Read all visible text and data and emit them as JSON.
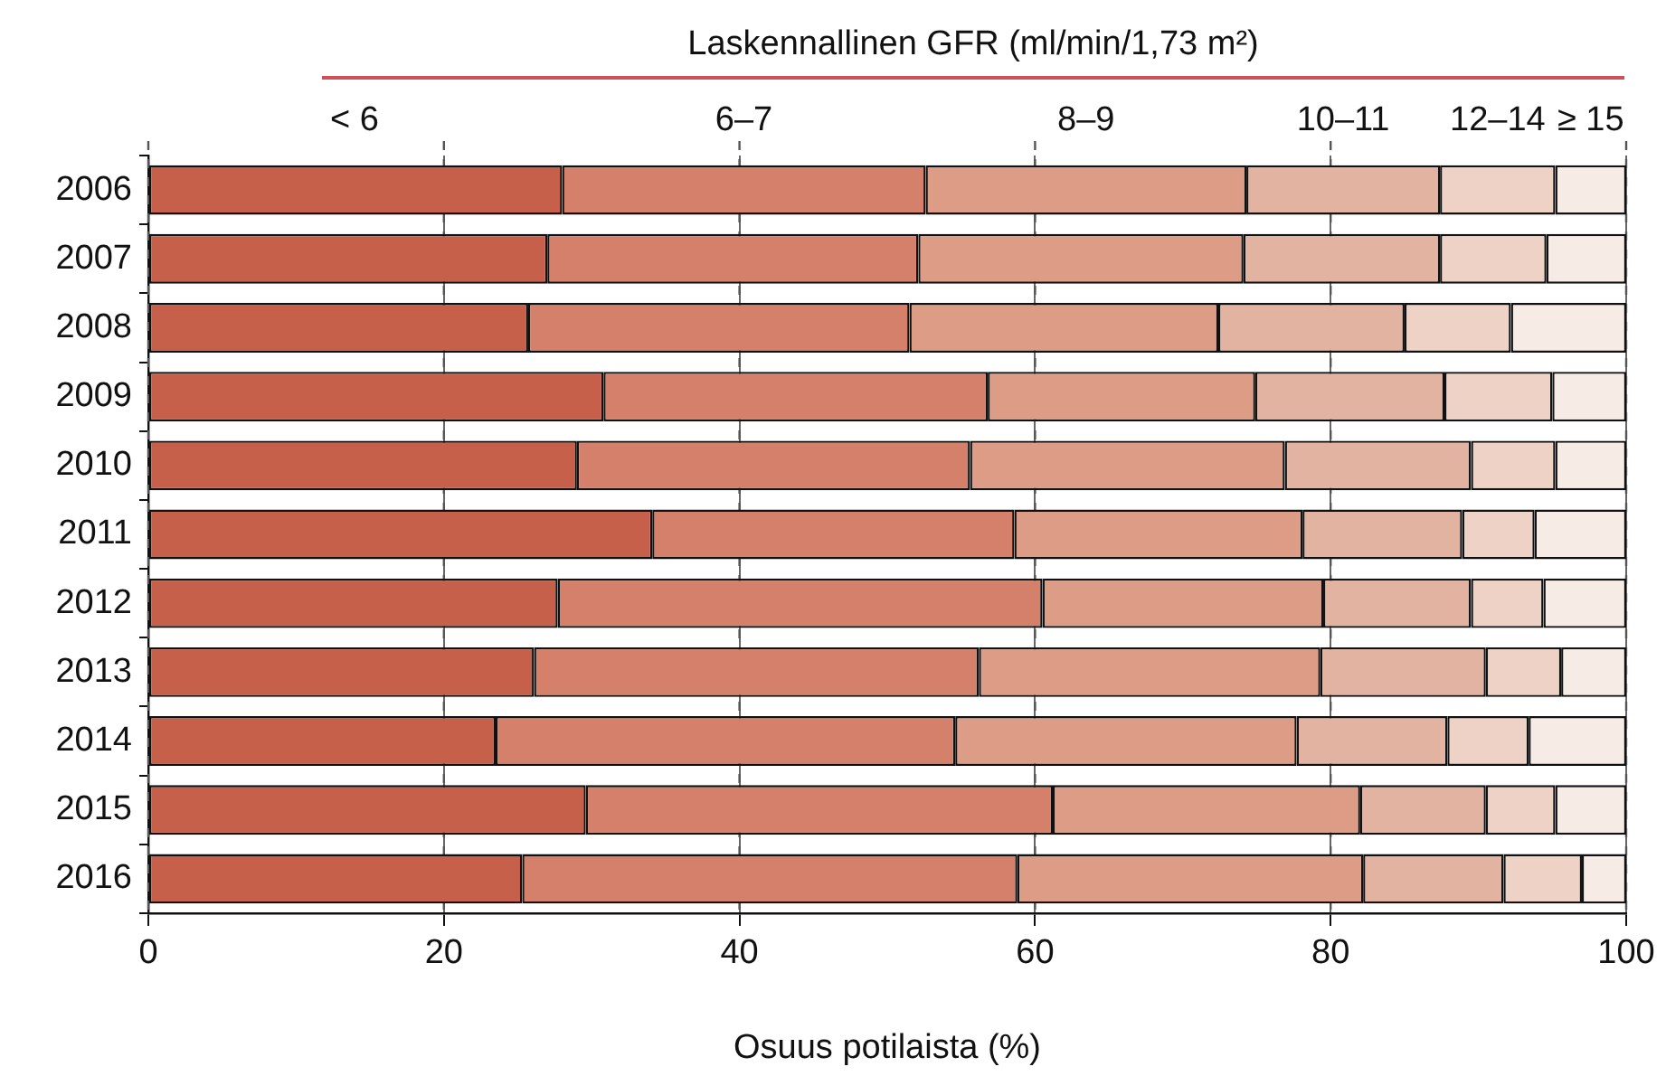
{
  "chart_data": {
    "type": "bar",
    "orientation": "horizontal",
    "stacked": true,
    "legend_title": "Laskennallinen GFR (ml/min/1,73 m²)",
    "xlabel": "Osuus potilaista (%)",
    "categories": [
      "2006",
      "2007",
      "2008",
      "2009",
      "2010",
      "2011",
      "2012",
      "2013",
      "2014",
      "2015",
      "2016"
    ],
    "series": [
      {
        "name": "< 6",
        "color": "#c6604a",
        "values": [
          28.0,
          27.0,
          25.7,
          30.8,
          29.0,
          34.1,
          27.7,
          26.1,
          23.5,
          29.6,
          25.3
        ]
      },
      {
        "name": "6–7",
        "color": "#d4806a",
        "values": [
          24.6,
          25.1,
          25.8,
          26.0,
          26.6,
          24.5,
          32.8,
          30.1,
          31.1,
          31.6,
          33.5
        ]
      },
      {
        "name": "8–9",
        "color": "#dc9c86",
        "values": [
          21.7,
          22.0,
          20.9,
          18.1,
          21.3,
          19.5,
          19.0,
          23.1,
          23.1,
          20.8,
          23.4
        ]
      },
      {
        "name": "10–11",
        "color": "#e3b3a2",
        "values": [
          13.1,
          13.3,
          12.6,
          12.8,
          12.6,
          10.8,
          10.0,
          11.2,
          10.2,
          8.5,
          9.5
        ]
      },
      {
        "name": "12–14",
        "color": "#efd2c6",
        "values": [
          7.8,
          7.2,
          7.2,
          7.3,
          5.7,
          4.9,
          4.9,
          5.1,
          5.5,
          4.7,
          5.3
        ]
      },
      {
        "name": "≥ 15",
        "color": "#f7ebe6",
        "values": [
          4.8,
          5.4,
          7.8,
          5.0,
          4.8,
          6.2,
          5.6,
          4.4,
          6.6,
          4.8,
          3.0
        ]
      }
    ],
    "xlim": [
      0,
      100
    ],
    "xticks": [
      0,
      20,
      40,
      60,
      80,
      100
    ],
    "grid": "x",
    "legend": "top"
  }
}
